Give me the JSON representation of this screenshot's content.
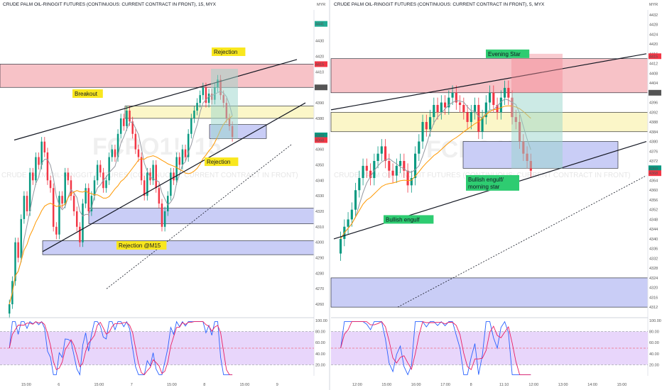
{
  "panels": [
    {
      "id": "left",
      "title": "CRUDE PALM OIL-RINGGIT FUTURES (CONTINUOUS: CURRENT CONTRACT IN FRONT), 15, MYX",
      "currency": "MYR",
      "watermark_symbol": "FCPO1!, 15",
      "watermark_desc": "CRUDE PALM OIL-RINGGIT FUTURES (CONTINUOUS: CURRENT CONTRACT IN FRONT)",
      "price_ticks": [
        "4441",
        "4430",
        "4420",
        "4410",
        "4400",
        "4390",
        "4380",
        "4370",
        "4360",
        "4350",
        "4340",
        "4330",
        "4320",
        "4310",
        "4300",
        "4290",
        "4280",
        "4270",
        "4260"
      ],
      "badges": [
        {
          "text": "4441",
          "color": "#22ab94"
        },
        {
          "text": "4415",
          "color": "#f23645"
        },
        {
          "text": "4400",
          "color": "#555555"
        },
        {
          "text": "4369",
          "color": "#089981"
        },
        {
          "text": "4368",
          "color": "#f23645"
        }
      ],
      "time_ticks": [
        "15:00",
        "6",
        "15:00",
        "7",
        "15:00",
        "8",
        "15:00",
        "9"
      ],
      "annotations": [
        "Rejection",
        "Breakout",
        "Rejection",
        "Rejection @M15"
      ],
      "osc_ticks": [
        "100.00",
        "80.00",
        "60.00",
        "40.00",
        "20.00"
      ]
    },
    {
      "id": "right",
      "title": "CRUDE PALM OIL-RINGGIT FUTURES (CONTINUOUS: CURRENT CONTRACT IN FRONT), 5, MYX",
      "currency": "MYR",
      "watermark_symbol": "FCPO1!, 5",
      "watermark_desc": "CRUDE PALM OIL-RINGGIT FUTURES (CONTINUOUS: CURRENT CONTRACT IN FRONT)",
      "price_ticks": [
        "4432",
        "4428",
        "4424",
        "4420",
        "4416",
        "4412",
        "4408",
        "4404",
        "4400",
        "4396",
        "4392",
        "4388",
        "4384",
        "4380",
        "4376",
        "4372",
        "4368",
        "4364",
        "4360",
        "4356",
        "4352",
        "4348",
        "4344",
        "4340",
        "4336",
        "4332",
        "4328",
        "4324",
        "4320",
        "4316",
        "4312"
      ],
      "badges": [
        {
          "text": "4415",
          "color": "#f23645"
        },
        {
          "text": "4400",
          "color": "#555555"
        },
        {
          "text": "4369",
          "color": "#089981"
        },
        {
          "text": "4368",
          "color": "#f23645"
        }
      ],
      "time_ticks": [
        "12:00",
        "15:00",
        "16:00",
        "17:00",
        "8",
        "11:10",
        "12:00",
        "13:00",
        "14:00",
        "15:00"
      ],
      "annotations": [
        "Evening Star",
        "Bullish engulf/\nmorning star",
        "Bullish engulf"
      ],
      "osc_ticks": [
        "100.00",
        "80.00",
        "60.00",
        "40.00",
        "20.00"
      ]
    }
  ],
  "chart_data": [
    {
      "type": "candlestick",
      "title": "CRUDE PALM OIL-RINGGIT FUTURES (CONTINUOUS: CURRENT CONTRACT IN FRONT), 15, MYX",
      "ylim": [
        4255,
        4450
      ],
      "y_ticks": [
        4441,
        4430,
        4420,
        4410,
        4400,
        4390,
        4380,
        4370,
        4360,
        4350,
        4340,
        4330,
        4320,
        4310,
        4300,
        4290,
        4280,
        4270,
        4260
      ],
      "x_ticks": [
        "15:00",
        "6",
        "15:00",
        "7",
        "15:00",
        "8",
        "15:00",
        "9"
      ],
      "close": [
        4260,
        4275,
        4300,
        4290,
        4315,
        4330,
        4320,
        4345,
        4340,
        4355,
        4350,
        4365,
        4358,
        4340,
        4335,
        4310,
        4305,
        4330,
        4325,
        4345,
        4340,
        4330,
        4320,
        4310,
        4300,
        4325,
        4335,
        4320,
        4330,
        4340,
        4350,
        4345,
        4335,
        4340,
        4355,
        4360,
        4355,
        4370,
        4380,
        4375,
        4385,
        4378,
        4370,
        4360,
        4355,
        4340,
        4330,
        4345,
        4340,
        4350,
        4335,
        4325,
        4310,
        4320,
        4330,
        4345,
        4340,
        4355,
        4350,
        4360,
        4355,
        4370,
        4380,
        4385,
        4390,
        4395,
        4400,
        4390,
        4396,
        4392,
        4400,
        4405,
        4395,
        4390,
        4380,
        4375,
        4368
      ],
      "zones": [
        {
          "kind": "supply",
          "y": [
            4400,
            4415
          ],
          "color": "#f7c2c7"
        },
        {
          "kind": "band",
          "y": [
            4380,
            4388
          ],
          "color": "#fbf6c8"
        },
        {
          "kind": "demand",
          "y": [
            4367,
            4376
          ],
          "color": "#c9cdf6"
        },
        {
          "kind": "demand",
          "y": [
            4312,
            4322
          ],
          "color": "#c9cdf6"
        },
        {
          "kind": "demand",
          "y": [
            4292,
            4301
          ],
          "color": "#c9cdf6"
        }
      ],
      "annotations": [
        {
          "text": "Rejection",
          "price": 4423,
          "bg": "#f9e71e"
        },
        {
          "text": "Breakout",
          "price": 4396,
          "bg": "#f9e71e"
        },
        {
          "text": "Rejection",
          "price": 4352,
          "bg": "#f9e71e"
        },
        {
          "text": "Rejection @M15",
          "price": 4298,
          "bg": "#f9e71e"
        }
      ],
      "oscillator": {
        "name": "Stochastic RSI",
        "ylim": [
          0,
          100
        ],
        "bands": [
          20,
          80
        ],
        "mid": 50
      }
    },
    {
      "type": "candlestick",
      "title": "CRUDE PALM OIL-RINGGIT FUTURES (CONTINUOUS: CURRENT CONTRACT IN FRONT), 5, MYX",
      "ylim": [
        4310,
        4434
      ],
      "y_ticks": [
        4432,
        4428,
        4424,
        4420,
        4416,
        4412,
        4408,
        4404,
        4400,
        4396,
        4392,
        4388,
        4384,
        4380,
        4376,
        4372,
        4368,
        4364,
        4360,
        4356,
        4352,
        4348,
        4344,
        4340,
        4336,
        4332,
        4328,
        4324,
        4320,
        4316,
        4312
      ],
      "x_ticks": [
        "12:00",
        "15:00",
        "16:00",
        "17:00",
        "8",
        "11:10",
        "12:00",
        "13:00",
        "14:00",
        "15:00"
      ],
      "close": [
        4340,
        4345,
        4348,
        4352,
        4360,
        4365,
        4370,
        4368,
        4365,
        4372,
        4375,
        4378,
        4372,
        4368,
        4366,
        4370,
        4372,
        4368,
        4362,
        4365,
        4375,
        4380,
        4388,
        4385,
        4390,
        4395,
        4392,
        4396,
        4394,
        4398,
        4400,
        4396,
        4395,
        4392,
        4388,
        4392,
        4395,
        4384,
        4390,
        4396,
        4400,
        4395,
        4392,
        4398,
        4402,
        4398,
        4390,
        4388,
        4380,
        4375,
        4372,
        4368
      ],
      "zones": [
        {
          "kind": "supply",
          "y": [
            4400,
            4414
          ],
          "color": "#f7c2c7"
        },
        {
          "kind": "band",
          "y": [
            4384,
            4392
          ],
          "color": "#fbf6c8"
        },
        {
          "kind": "demand",
          "y": [
            4369,
            4380
          ],
          "color": "#c9cdf6"
        },
        {
          "kind": "demand",
          "y": [
            4312,
            4324
          ],
          "color": "#c9cdf6"
        }
      ],
      "annotations": [
        {
          "text": "Evening Star",
          "price": 4416,
          "bg": "#2ecc71"
        },
        {
          "text": "Bullish engulf/\nmorning star",
          "price": 4363,
          "bg": "#2ecc71"
        },
        {
          "text": "Bullish engulf",
          "price": 4348,
          "bg": "#2ecc71"
        }
      ],
      "oscillator": {
        "name": "Stochastic RSI",
        "ylim": [
          0,
          100
        ],
        "bands": [
          20,
          80
        ],
        "mid": 50
      }
    }
  ]
}
